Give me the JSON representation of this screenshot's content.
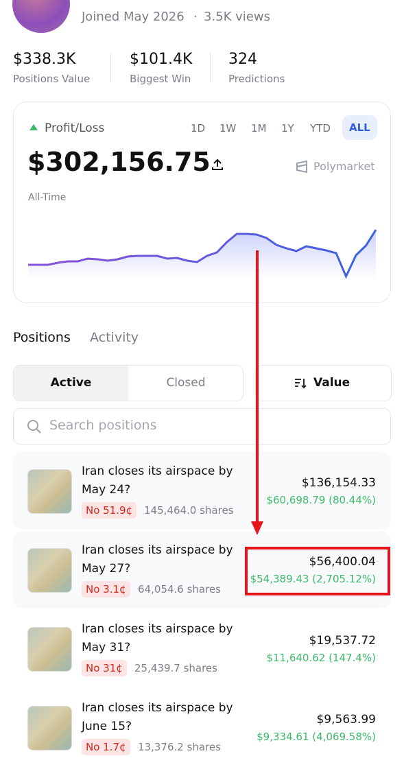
{
  "profile": {
    "joined": "Joined May 2026",
    "views": "3.5K views"
  },
  "stats": [
    {
      "value": "$338.3K",
      "label": "Positions Value"
    },
    {
      "value": "$101.4K",
      "label": "Biggest Win"
    },
    {
      "value": "324",
      "label": "Predictions"
    }
  ],
  "pnl": {
    "label": "Profit/Loss",
    "ranges": [
      "1D",
      "1W",
      "1M",
      "1Y",
      "YTD",
      "ALL"
    ],
    "selected_range": 5,
    "value": "$302,156.75",
    "brand": "Polymarket",
    "period": "All-Time",
    "sparkline": [
      19,
      19,
      19,
      22,
      24,
      24,
      28,
      27,
      25,
      27,
      31,
      32,
      32,
      32,
      28,
      29,
      25,
      23,
      32,
      37,
      52,
      64,
      64,
      63,
      58,
      48,
      43,
      39,
      46,
      43,
      40,
      36,
      2,
      33,
      47,
      70
    ]
  },
  "tabs": [
    "Positions",
    "Activity"
  ],
  "filters": [
    "Active",
    "Closed"
  ],
  "sort": "Value",
  "search_placeholder": "Search positions",
  "positions": [
    {
      "title": "Iran closes its airspace by May 24?",
      "outcome": "No 51.9¢",
      "shares": "145,464.0 shares",
      "value": "$136,154.33",
      "pnl": "$60,698.79 (80.44%)"
    },
    {
      "title": "Iran closes its airspace by May 27?",
      "outcome": "No 3.1¢",
      "shares": "64,054.6 shares",
      "value": "$56,400.04",
      "pnl": "$54,389.43 (2,705.12%)"
    },
    {
      "title": "Iran closes its airspace by May 31?",
      "outcome": "No 31¢",
      "shares": "25,439.7 shares",
      "value": "$19,537.72",
      "pnl": "$11,640.62 (147.4%)"
    },
    {
      "title": "Iran closes its airspace by June 15?",
      "outcome": "No 1.7¢",
      "shares": "13,376.2 shares",
      "value": "$9,563.99",
      "pnl": "$9,334.61 (4,069.58%)"
    }
  ]
}
